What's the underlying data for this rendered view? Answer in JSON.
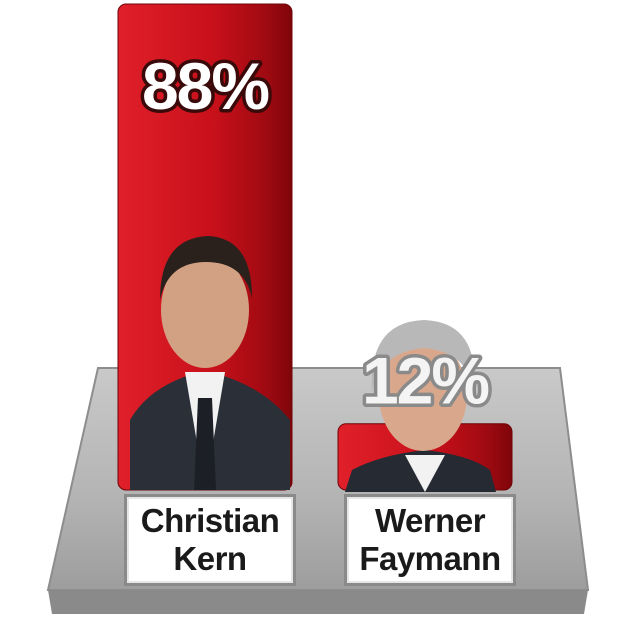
{
  "chart_data": {
    "type": "bar",
    "categories": [
      "Christian Kern",
      "Werner Faymann"
    ],
    "values": [
      88,
      12
    ],
    "value_labels": [
      "88%",
      "12%"
    ],
    "color": "#d0121c"
  }
}
